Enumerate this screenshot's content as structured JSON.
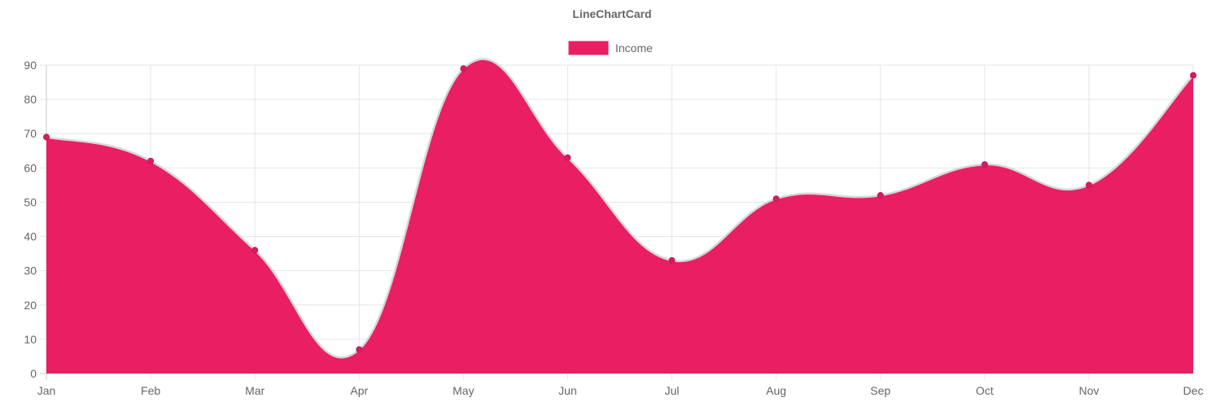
{
  "chart_data": {
    "type": "area",
    "title": "LineChartCard",
    "xlabel": "",
    "ylabel": "",
    "categories": [
      "Jan",
      "Feb",
      "Mar",
      "Apr",
      "May",
      "Jun",
      "Jul",
      "Aug",
      "Sep",
      "Oct",
      "Nov",
      "Dec"
    ],
    "series": [
      {
        "name": "Income",
        "values": [
          69,
          62,
          36,
          7,
          89,
          63,
          33,
          51,
          52,
          61,
          55,
          87
        ],
        "color": "#E91E63"
      }
    ],
    "ylim": [
      0,
      90
    ],
    "yticks": [
      0,
      10,
      20,
      30,
      40,
      50,
      60,
      70,
      80,
      90
    ],
    "grid": true,
    "legend": "top-center",
    "smooth": true
  }
}
